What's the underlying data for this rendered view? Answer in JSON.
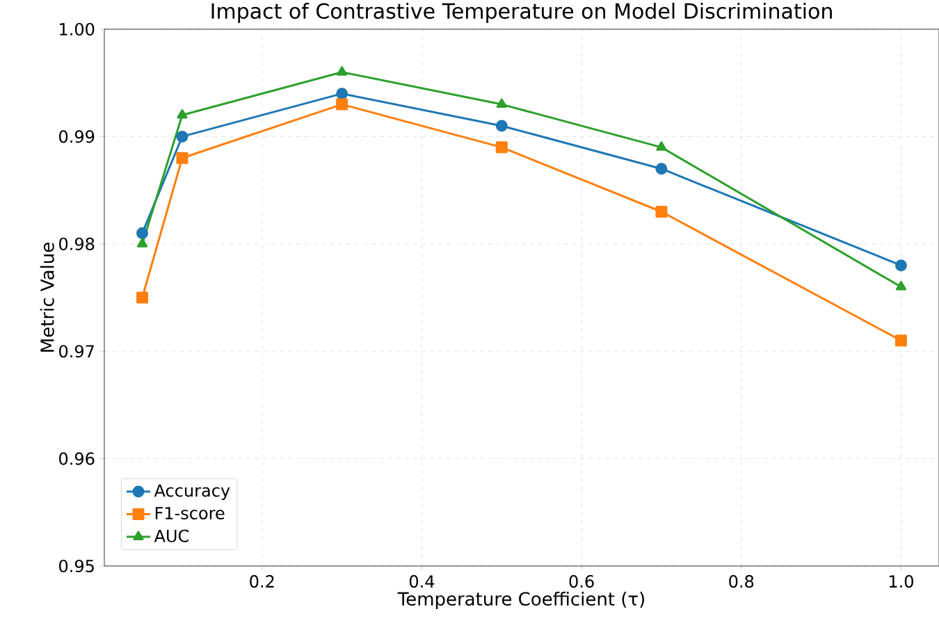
{
  "chart_data": {
    "type": "line",
    "title": "Impact of Contrastive Temperature on Model Discrimination",
    "xlabel": "Temperature Coefficient (τ)",
    "ylabel": "Metric Value",
    "x": [
      0.05,
      0.1,
      0.3,
      0.5,
      0.7,
      1.0
    ],
    "series": [
      {
        "name": "Accuracy",
        "color": "#1f77b4",
        "marker": "circle",
        "values": [
          0.981,
          0.99,
          0.994,
          0.991,
          0.987,
          0.978
        ]
      },
      {
        "name": "F1-score",
        "color": "#ff7f0e",
        "marker": "square",
        "values": [
          0.975,
          0.988,
          0.993,
          0.989,
          0.983,
          0.971
        ]
      },
      {
        "name": "AUC",
        "color": "#2ca02c",
        "marker": "triangle",
        "values": [
          0.98,
          0.992,
          0.996,
          0.993,
          0.989,
          0.976
        ]
      }
    ],
    "xlim": [
      0.0025,
      1.0475
    ],
    "ylim": [
      0.95,
      1.0
    ],
    "xticks": [
      {
        "value": 0.2,
        "label": "0.2"
      },
      {
        "value": 0.4,
        "label": "0.4"
      },
      {
        "value": 0.6,
        "label": "0.6"
      },
      {
        "value": 0.8,
        "label": "0.8"
      },
      {
        "value": 1.0,
        "label": "1.0"
      }
    ],
    "yticks": [
      {
        "value": 0.95,
        "label": "0.95"
      },
      {
        "value": 0.96,
        "label": "0.96"
      },
      {
        "value": 0.97,
        "label": "0.97"
      },
      {
        "value": 0.98,
        "label": "0.98"
      },
      {
        "value": 0.99,
        "label": "0.99"
      },
      {
        "value": 1.0,
        "label": "1.00"
      }
    ],
    "grid": true,
    "legend": "bottom left",
    "line_style": "solid"
  }
}
